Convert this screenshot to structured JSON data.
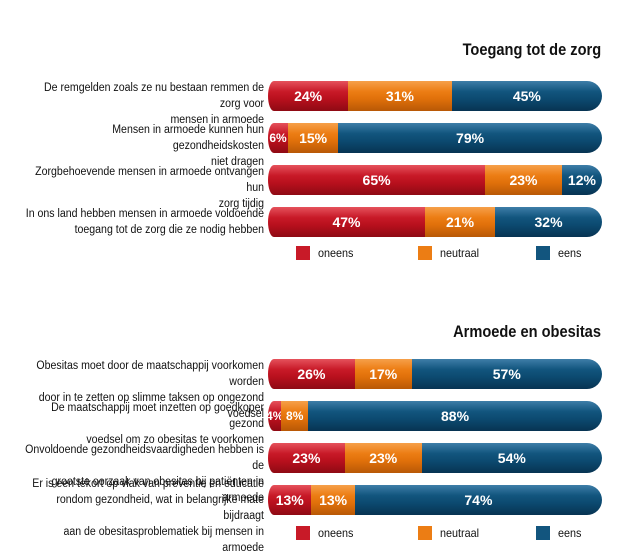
{
  "colors": {
    "oneens": "#c81a28",
    "neutraal": "#ec7d14",
    "eens": "#12557e"
  },
  "legend": {
    "oneens": "oneens",
    "neutraal": "neutraal",
    "eens": "eens"
  },
  "chart_data": [
    {
      "type": "bar",
      "orientation": "horizontal-stacked",
      "title": "Toegang tot de zorg",
      "categories": [
        "De remgelden zoals ze nu bestaan remmen de zorg voor mensen in armoede",
        "Mensen in armoede kunnen hun gezondheidskosten niet dragen",
        "Zorgbehoevende mensen in armoede ontvangen hun zorg tijdig",
        "In ons land hebben mensen in armoede voldoende toegang tot de zorg die ze nodig hebben"
      ],
      "series": [
        {
          "name": "oneens",
          "values": [
            24,
            6,
            65,
            47
          ]
        },
        {
          "name": "neutraal",
          "values": [
            31,
            15,
            23,
            21
          ]
        },
        {
          "name": "eens",
          "values": [
            45,
            79,
            12,
            32
          ]
        }
      ],
      "value_labels": [
        [
          "24%",
          "31%",
          "45%"
        ],
        [
          "6%",
          "15%",
          "79%"
        ],
        [
          "65%",
          "23%",
          "12%"
        ],
        [
          "47%",
          "21%",
          "32%"
        ]
      ],
      "label_lines": [
        [
          "De remgelden zoals ze nu bestaan remmen de zorg voor",
          "mensen in armoede"
        ],
        [
          "Mensen in armoede kunnen hun gezondheidskosten",
          "niet dragen"
        ],
        [
          "Zorgbehoevende mensen in armoede ontvangen hun",
          "zorg tijdig"
        ],
        [
          "In ons land hebben mensen in armoede voldoende",
          "toegang tot de zorg die ze nodig hebben"
        ]
      ],
      "legend_position": "bottom"
    },
    {
      "type": "bar",
      "orientation": "horizontal-stacked",
      "title": "Armoede en obesitas",
      "categories": [
        "Obesitas moet door de maatschappij voorkomen worden door in te zetten op slimme taksen op ongezond voedsel",
        "De maatschappij moet inzetten op goedkoper gezond voedsel om zo obesitas te voorkomen",
        "Onvoldoende gezondheidsvaardigheden hebben is de grootste oorzaak van obesitas bij patiënten in armoede",
        "Er is een tekort op vlak van preventie en educatie rondom gezondheid, wat in belangrijke mate bijdraagt aan de obesitasproblematiek bij mensen in armoede"
      ],
      "series": [
        {
          "name": "oneens",
          "values": [
            26,
            4,
            23,
            13
          ]
        },
        {
          "name": "neutraal",
          "values": [
            17,
            8,
            23,
            13
          ]
        },
        {
          "name": "eens",
          "values": [
            57,
            88,
            54,
            74
          ]
        }
      ],
      "value_labels": [
        [
          "26%",
          "17%",
          "57%"
        ],
        [
          "4%",
          "8%",
          "88%"
        ],
        [
          "23%",
          "23%",
          "54%"
        ],
        [
          "13%",
          "13%",
          "74%"
        ]
      ],
      "label_lines": [
        [
          "Obesitas moet door de maatschappij voorkomen worden",
          "door in te zetten op slimme taksen op ongezond voedsel"
        ],
        [
          "De maatschappij moet inzetten op goedkoper gezond",
          "voedsel om zo obesitas te voorkomen"
        ],
        [
          "Onvoldoende gezondheidsvaardigheden hebben is de",
          "grootste oorzaak van obesitas bij patiënten in armoede"
        ],
        [
          "Er is een tekort op vlak van preventie en educatie",
          "rondom gezondheid, wat in belangrijke mate bijdraagt",
          "aan de obesitasproblematiek bij mensen in armoede"
        ]
      ],
      "legend_position": "bottom"
    }
  ]
}
